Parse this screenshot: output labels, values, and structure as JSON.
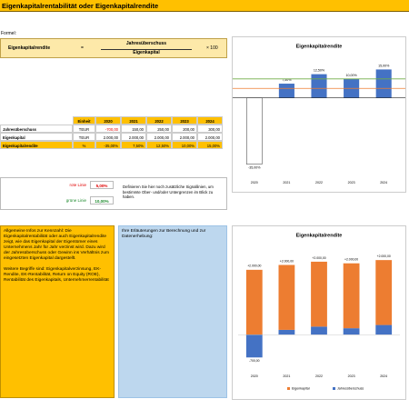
{
  "title": "Eigenkapitalrentabilität oder Eigenkapitalrendite",
  "formula": {
    "label": "Formel:",
    "name": "Eigenkapitalrendite",
    "equals": "=",
    "numerator": "Jahresüberschuss",
    "denominator": "Eigenkapital",
    "factor": "× 100"
  },
  "table": {
    "header": [
      "Einheit",
      "2020",
      "2021",
      "2022",
      "2023",
      "2024"
    ],
    "rows": [
      [
        "Jahresüberschuss",
        "TEUR",
        "-700,00",
        "150,00",
        "250,00",
        "200,00",
        "300,00"
      ],
      [
        "Eigenkapital",
        "TEUR",
        "2.000,00",
        "2.000,00",
        "2.000,00",
        "2.000,00",
        "2.000,00"
      ],
      [
        "Eigenkapitalrendite",
        "%",
        "-35,00%",
        "7,50%",
        "12,50%",
        "10,00%",
        "15,00%"
      ]
    ]
  },
  "signals": {
    "rows": [
      [
        "rote Linie",
        "5,00%"
      ],
      [
        "grüne Linie",
        "10,00%"
      ]
    ],
    "note": "Definieren Sie hier noch zusätzliche Signallinien, um bestimmte Ober- und/oder Untergrenzen im Blick zu haben."
  },
  "info": {
    "paragraphs": [
      "Allgemeine Infos zur Kennzahl: Die Eigenkapitalrentabilität oder auch Eigenkapitalrendite zeigt, wie das Eigenkapital der Eigentümer eines Unternehmens Jahr für Jahr verzinst wird. Dazu wird der Jahresüberschuss oder Gewinn ins Verhältnis zum eingesetzten Eigenkapital dargestellt.",
      "Weitere Begriffe sind: Eigenkapitalverzinsung, EK-Rendite, EK-Rentabilität, Return on Equity (ROE), Rentabilität des Eigenkapitals, Unternehmerrentabilität"
    ]
  },
  "notes": "Ihre Erläuterungen zur Berechnung und zur Datenerhebung:",
  "chart_data": [
    {
      "type": "bar",
      "title": "Eigenkapitalrendite",
      "categories": [
        "2020",
        "2021",
        "2022",
        "2023",
        "2024"
      ],
      "values": [
        -35,
        7.5,
        12.5,
        10,
        15
      ],
      "value_labels": [
        "-35,00%",
        "7,50%",
        "12,50%",
        "10,00%",
        "15,00%"
      ],
      "color": "#4472c4",
      "negative_color": "#ffffff",
      "ylim": [
        -40,
        20
      ],
      "reference_lines": [
        {
          "value": 5,
          "color": "#ed7d31"
        },
        {
          "value": 10,
          "color": "#70ad47"
        }
      ]
    },
    {
      "type": "stacked_bar",
      "title": "Eigenkapitalrendite",
      "categories": [
        "2020",
        "2021",
        "2022",
        "2023",
        "2024"
      ],
      "series": [
        {
          "name": "Eigenkapital",
          "color": "#ed7d31",
          "values": [
            2000,
            2000,
            2000,
            2000,
            2000
          ],
          "value_labels": [
            "+2.000,00",
            "+2.000,00",
            "+2.000,00",
            "+2.000,00",
            "+2.000,00"
          ]
        },
        {
          "name": "Jahresüberschuss",
          "color": "#4472c4",
          "values": [
            -700,
            150,
            250,
            200,
            300
          ],
          "value_labels": [
            "-700,00",
            "150,00",
            "250,00",
            "200,00",
            "300,00"
          ]
        }
      ],
      "ylim": [
        -1000,
        2500
      ],
      "legend": "bottom"
    }
  ]
}
